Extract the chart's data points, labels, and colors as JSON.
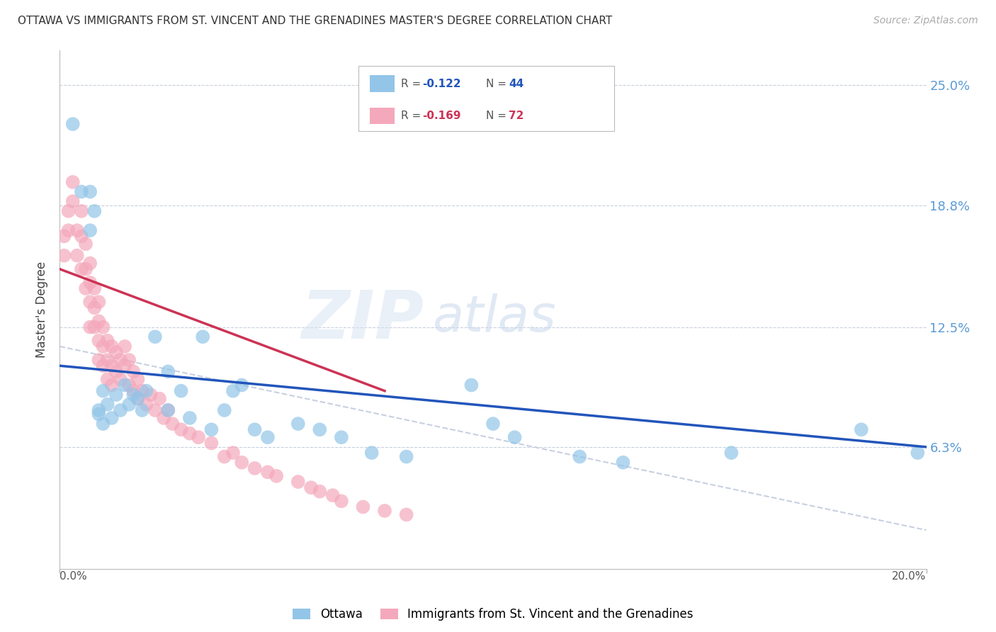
{
  "title": "OTTAWA VS IMMIGRANTS FROM ST. VINCENT AND THE GRENADINES MASTER'S DEGREE CORRELATION CHART",
  "source": "Source: ZipAtlas.com",
  "ylabel": "Master's Degree",
  "y_tick_labels": [
    "6.3%",
    "12.5%",
    "18.8%",
    "25.0%"
  ],
  "y_tick_values": [
    0.063,
    0.125,
    0.188,
    0.25
  ],
  "x_min": 0.0,
  "x_max": 0.2,
  "y_min": 0.0,
  "y_max": 0.268,
  "legend_ottawa": "Ottawa",
  "legend_immigrants": "Immigrants from St. Vincent and the Grenadines",
  "r_ottawa": "-0.122",
  "n_ottawa": "44",
  "r_immigrants": "-0.169",
  "n_immigrants": "72",
  "color_ottawa": "#92C5E8",
  "color_immigrants": "#F4A8BB",
  "color_regression_ottawa": "#2255BB",
  "color_regression_immigrants": "#CC3355",
  "color_regression_dashed": "#C8D0E0",
  "watermark_zip": "ZIP",
  "watermark_atlas": "atlas",
  "background_color": "#FFFFFF",
  "ottawa_x": [
    0.003,
    0.005,
    0.007,
    0.007,
    0.008,
    0.009,
    0.009,
    0.01,
    0.01,
    0.011,
    0.012,
    0.013,
    0.014,
    0.015,
    0.016,
    0.017,
    0.018,
    0.019,
    0.02,
    0.022,
    0.025,
    0.025,
    0.028,
    0.03,
    0.033,
    0.035,
    0.038,
    0.04,
    0.042,
    0.045,
    0.048,
    0.055,
    0.06,
    0.065,
    0.072,
    0.08,
    0.095,
    0.1,
    0.105,
    0.12,
    0.13,
    0.155,
    0.185,
    0.198
  ],
  "ottawa_y": [
    0.23,
    0.195,
    0.195,
    0.175,
    0.185,
    0.08,
    0.082,
    0.092,
    0.075,
    0.085,
    0.078,
    0.09,
    0.082,
    0.095,
    0.085,
    0.09,
    0.088,
    0.082,
    0.092,
    0.12,
    0.102,
    0.082,
    0.092,
    0.078,
    0.12,
    0.072,
    0.082,
    0.092,
    0.095,
    0.072,
    0.068,
    0.075,
    0.072,
    0.068,
    0.06,
    0.058,
    0.095,
    0.075,
    0.068,
    0.058,
    0.055,
    0.06,
    0.072,
    0.06
  ],
  "immigrants_x": [
    0.001,
    0.001,
    0.002,
    0.002,
    0.003,
    0.003,
    0.004,
    0.004,
    0.005,
    0.005,
    0.005,
    0.006,
    0.006,
    0.006,
    0.007,
    0.007,
    0.007,
    0.007,
    0.008,
    0.008,
    0.008,
    0.009,
    0.009,
    0.009,
    0.009,
    0.01,
    0.01,
    0.01,
    0.011,
    0.011,
    0.011,
    0.012,
    0.012,
    0.012,
    0.013,
    0.013,
    0.014,
    0.014,
    0.015,
    0.015,
    0.016,
    0.016,
    0.017,
    0.017,
    0.018,
    0.018,
    0.019,
    0.02,
    0.021,
    0.022,
    0.023,
    0.024,
    0.025,
    0.026,
    0.028,
    0.03,
    0.032,
    0.035,
    0.038,
    0.04,
    0.042,
    0.045,
    0.048,
    0.05,
    0.055,
    0.058,
    0.06,
    0.063,
    0.065,
    0.07,
    0.075,
    0.08
  ],
  "immigrants_y": [
    0.172,
    0.162,
    0.185,
    0.175,
    0.19,
    0.2,
    0.175,
    0.162,
    0.185,
    0.172,
    0.155,
    0.168,
    0.155,
    0.145,
    0.158,
    0.148,
    0.138,
    0.125,
    0.145,
    0.135,
    0.125,
    0.138,
    0.128,
    0.118,
    0.108,
    0.125,
    0.115,
    0.105,
    0.118,
    0.108,
    0.098,
    0.115,
    0.105,
    0.095,
    0.112,
    0.102,
    0.108,
    0.098,
    0.115,
    0.105,
    0.108,
    0.095,
    0.102,
    0.092,
    0.098,
    0.088,
    0.092,
    0.085,
    0.09,
    0.082,
    0.088,
    0.078,
    0.082,
    0.075,
    0.072,
    0.07,
    0.068,
    0.065,
    0.058,
    0.06,
    0.055,
    0.052,
    0.05,
    0.048,
    0.045,
    0.042,
    0.04,
    0.038,
    0.035,
    0.032,
    0.03,
    0.028
  ]
}
